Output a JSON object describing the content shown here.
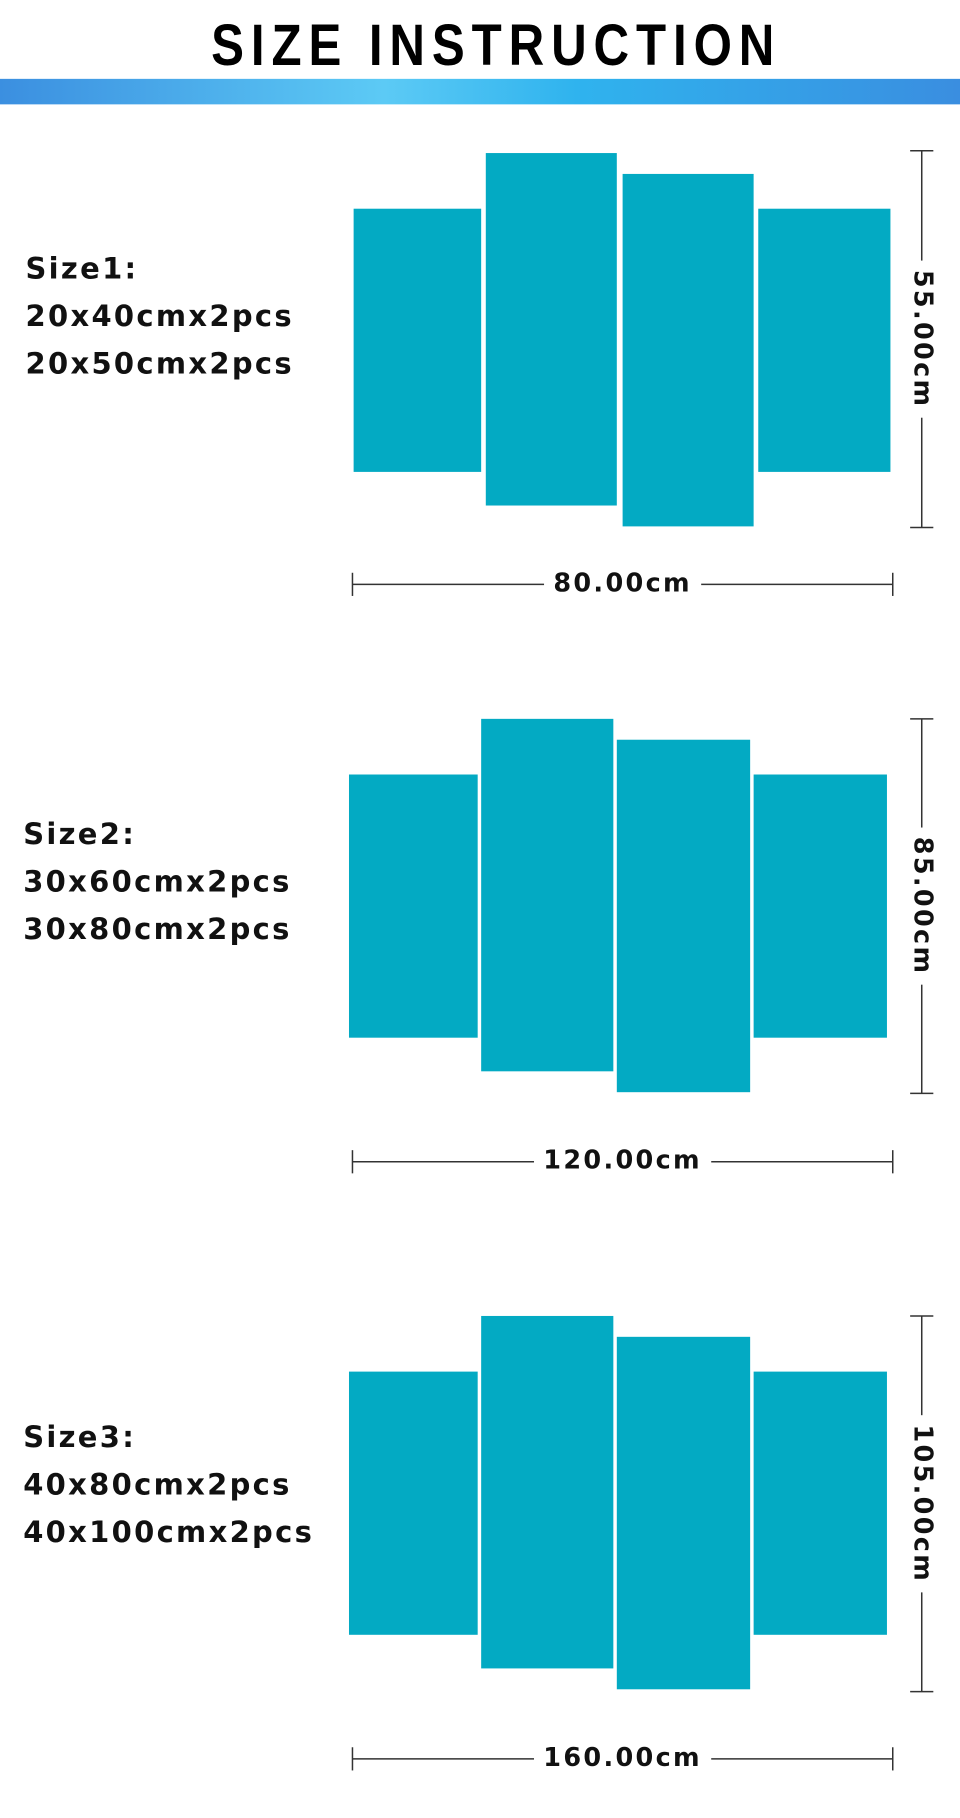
{
  "header": {
    "title": "SIZE INSTRUCTION"
  },
  "sizes": [
    {
      "label": "Size1:",
      "lines": [
        "20x40cmx2pcs",
        "20x50cmx2pcs"
      ],
      "height": "55.00cm",
      "width": "80.00cm"
    },
    {
      "label": "Size2:",
      "lines": [
        "30x60cmx2pcs",
        "30x80cmx2pcs"
      ],
      "height": "85.00cm",
      "width": "120.00cm"
    },
    {
      "label": "Size3:",
      "lines": [
        "40x80cmx2pcs",
        "40x100cmx2pcs"
      ],
      "height": "105.00cm",
      "width": "160.00cm"
    }
  ]
}
